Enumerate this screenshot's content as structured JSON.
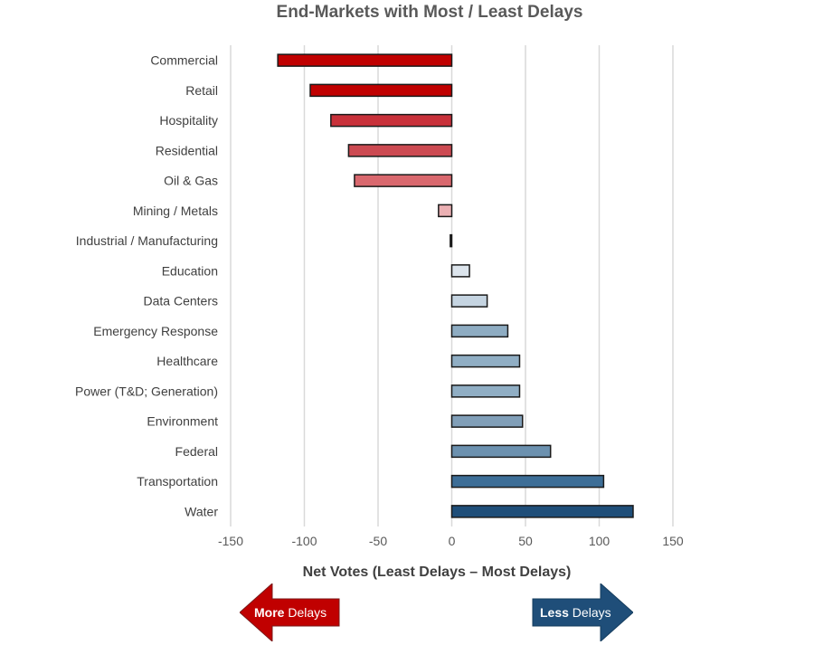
{
  "chart_data": {
    "type": "bar",
    "orientation": "horizontal",
    "title": "End-Markets with Most / Least Delays",
    "xlabel": "Net Votes (Least Delays – Most Delays)",
    "ylabel": "",
    "xlim": [
      -150,
      150
    ],
    "xticks": [
      -150,
      -100,
      -50,
      0,
      50,
      100,
      150
    ],
    "grid": true,
    "categories": [
      "Commercial",
      "Retail",
      "Hospitality",
      "Residential",
      "Oil & Gas",
      "Mining / Metals",
      "Industrial / Manufacturing",
      "Education",
      "Data Centers",
      "Emergency Response",
      "Healthcare",
      "Power (T&D; Generation)",
      "Environment",
      "Federal",
      "Transportation",
      "Water"
    ],
    "values": [
      -118,
      -96,
      -82,
      -70,
      -66,
      -9,
      -1,
      12,
      24,
      38,
      46,
      46,
      48,
      67,
      103,
      123
    ],
    "colors": [
      "#C00000",
      "#C00000",
      "#C8313A",
      "#CC4A52",
      "#D9686E",
      "#EBB0B3",
      "#1F1F1F",
      "#DCE4EC",
      "#C5D4E1",
      "#8EACC2",
      "#90AEC4",
      "#90AEC4",
      "#819FB8",
      "#6C91AF",
      "#3D6E97",
      "#1F4E79"
    ]
  },
  "arrows": {
    "left": {
      "bold": "More",
      "rest": " Delays",
      "color": "#C00000"
    },
    "right": {
      "bold": "Less",
      "rest": " Delays",
      "color": "#1F4E79"
    }
  }
}
